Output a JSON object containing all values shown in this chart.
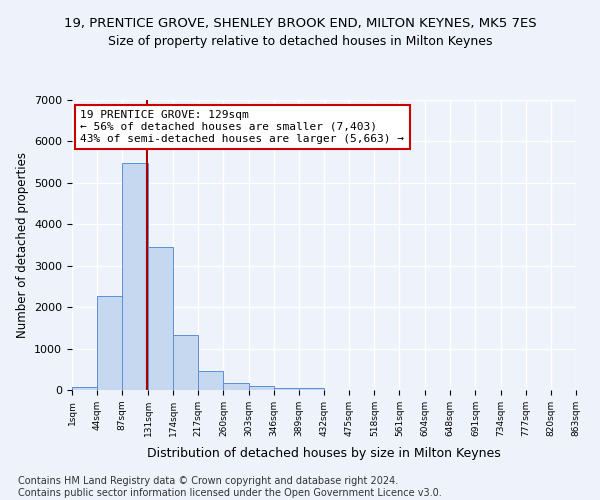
{
  "title_line1": "19, PRENTICE GROVE, SHENLEY BROOK END, MILTON KEYNES, MK5 7ES",
  "title_line2": "Size of property relative to detached houses in Milton Keynes",
  "xlabel": "Distribution of detached houses by size in Milton Keynes",
  "ylabel": "Number of detached properties",
  "bin_edges": [
    1,
    44,
    87,
    131,
    174,
    217,
    260,
    303,
    346,
    389,
    432,
    475,
    518,
    561,
    604,
    648,
    691,
    734,
    777,
    820,
    863
  ],
  "bar_heights": [
    75,
    2275,
    5480,
    3450,
    1320,
    470,
    160,
    90,
    55,
    40,
    0,
    0,
    0,
    0,
    0,
    0,
    0,
    0,
    0,
    0
  ],
  "bar_color": "#c5d8f0",
  "bar_edge_color": "#5b8fd4",
  "property_size": 129,
  "property_line_color": "#aa0000",
  "annotation_text": "19 PRENTICE GROVE: 129sqm\n← 56% of detached houses are smaller (7,403)\n43% of semi-detached houses are larger (5,663) →",
  "annotation_box_color": "#ffffff",
  "annotation_box_edge": "#cc0000",
  "ylim": [
    0,
    7000
  ],
  "tick_labels": [
    "1sqm",
    "44sqm",
    "87sqm",
    "131sqm",
    "174sqm",
    "217sqm",
    "260sqm",
    "303sqm",
    "346sqm",
    "389sqm",
    "432sqm",
    "475sqm",
    "518sqm",
    "561sqm",
    "604sqm",
    "648sqm",
    "691sqm",
    "734sqm",
    "777sqm",
    "820sqm",
    "863sqm"
  ],
  "footnote": "Contains HM Land Registry data © Crown copyright and database right 2024.\nContains public sector information licensed under the Open Government Licence v3.0.",
  "background_color": "#eef2fb",
  "grid_color": "#ffffff",
  "title1_fontsize": 9.5,
  "title2_fontsize": 9,
  "xlabel_fontsize": 9,
  "ylabel_fontsize": 8.5,
  "footnote_fontsize": 7,
  "annotation_fontsize": 8
}
